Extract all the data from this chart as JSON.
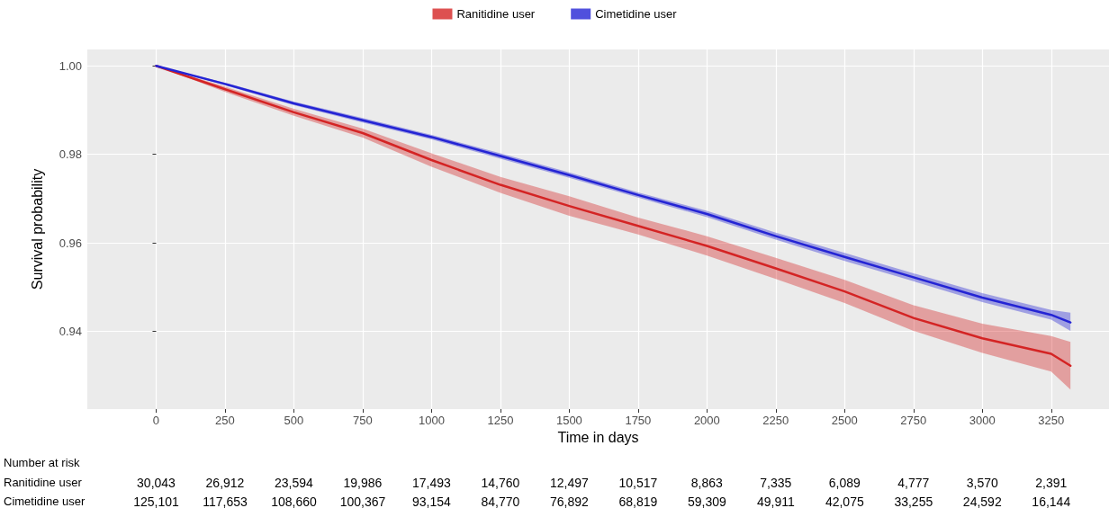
{
  "chart_data": {
    "type": "line",
    "xlabel": "Time in days",
    "ylabel": "Survival probability",
    "xlim": [
      -250,
      3460
    ],
    "ylim": [
      0.9224,
      1.0037
    ],
    "xticks": [
      0,
      250,
      500,
      750,
      1000,
      1250,
      1500,
      1750,
      2000,
      2250,
      2500,
      2750,
      3000,
      3250
    ],
    "yticks": [
      0.94,
      0.96,
      0.98,
      {
        "value": 1,
        "label": "1.00"
      }
    ],
    "grid": true,
    "legend": "top",
    "marker": "none",
    "x": [
      0,
      250,
      500,
      750,
      1000,
      1250,
      1500,
      1750,
      2000,
      2250,
      2500,
      2750,
      3000,
      3250,
      3320
    ],
    "series": [
      {
        "name": "Ranitidine user",
        "color": "#d42424",
        "values": [
          1.0,
          0.9947,
          0.9895,
          0.9848,
          0.9787,
          0.9731,
          0.9683,
          0.9638,
          0.9593,
          0.9542,
          0.949,
          0.943,
          0.9384,
          0.9349,
          0.9322
        ],
        "lower": [
          1.0,
          0.9941,
          0.9887,
          0.9838,
          0.9772,
          0.9713,
          0.9661,
          0.9619,
          0.9571,
          0.9518,
          0.9464,
          0.9401,
          0.9351,
          0.9309,
          0.9268
        ],
        "upper": [
          1.0,
          0.9953,
          0.9903,
          0.9858,
          0.9802,
          0.9749,
          0.9705,
          0.9657,
          0.9615,
          0.9566,
          0.9516,
          0.9459,
          0.9417,
          0.9389,
          0.9376
        ]
      },
      {
        "name": "Cimetidine user",
        "color": "#2424d4",
        "values": [
          1.0,
          0.9959,
          0.9915,
          0.9877,
          0.9839,
          0.9796,
          0.9753,
          0.9708,
          0.9665,
          0.9615,
          0.9568,
          0.9522,
          0.9476,
          0.9437,
          0.942
        ],
        "lower": [
          1.0,
          0.9956,
          0.9911,
          0.9872,
          0.9834,
          0.979,
          0.9747,
          0.9702,
          0.9658,
          0.9607,
          0.9559,
          0.9513,
          0.9466,
          0.9426,
          0.9401
        ],
        "upper": [
          1.0,
          0.9962,
          0.9919,
          0.9882,
          0.9844,
          0.9802,
          0.9759,
          0.9714,
          0.9672,
          0.9623,
          0.9577,
          0.9531,
          0.9486,
          0.9448,
          0.9442
        ]
      }
    ],
    "annotations": [
      "Number at risk",
      "Ranitidine user",
      "30,043",
      "26,912",
      "23,594",
      "19,986",
      "17,493",
      "14,760",
      "12,497",
      "10,517",
      "8,863",
      "7,335",
      "6,089",
      "4,777",
      "3,570",
      "2,391",
      "Cimetidine user",
      "125,101",
      "117,653",
      "108,660",
      "100,367",
      "93,154",
      "84,770",
      "76,892",
      "68,819",
      "59,309",
      "49,911",
      "42,075",
      "33,255",
      "24,592",
      "16,144"
    ]
  }
}
